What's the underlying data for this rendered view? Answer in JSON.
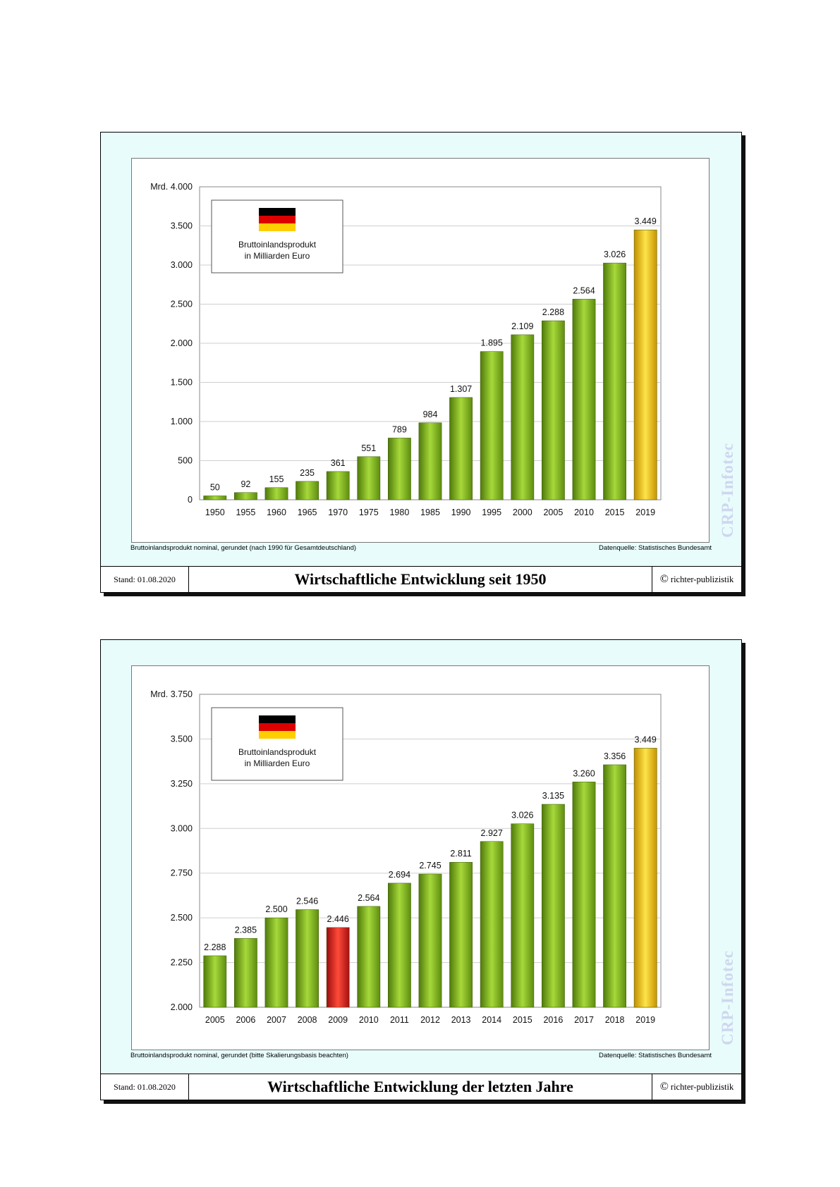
{
  "page": {
    "charts": [
      {
        "footer": {
          "date": "Stand: 01.08.2020",
          "title": "Wirtschaftliche Entwicklung seit 1950",
          "copyright_symbol": "©",
          "copyright": "richter-publizistik"
        },
        "note_left": "Bruttoinlandsprodukt nominal, gerundet (nach 1990 für Gesamtdeutschland)",
        "note_right": "Datenquelle: Statistisches Bundesamt",
        "watermark": "CRP-Infotec",
        "legend": [
          "Bruttoinlandsprodukt",
          "in Milliarden Euro"
        ]
      },
      {
        "footer": {
          "date": "Stand: 01.08.2020",
          "title": "Wirtschaftliche Entwicklung der letzten Jahre",
          "copyright_symbol": "©",
          "copyright": "richter-publizistik"
        },
        "note_left": "Bruttoinlandsprodukt nominal, gerundet (bitte Skalierungsbasis beachten)",
        "note_right": "Datenquelle: Statistisches Bundesamt",
        "watermark": "CRP-Infotec",
        "legend": [
          "Bruttoinlandsprodukt",
          "in Milliarden Euro"
        ]
      }
    ]
  },
  "colors": {
    "bar_green": "#8fc21f",
    "bar_gold": "#f2c21a",
    "bar_red": "#e02020",
    "card_background": "#e8fcfc",
    "flag": [
      "#000000",
      "#dd0000",
      "#ffce00"
    ]
  },
  "chart_data": [
    {
      "type": "bar",
      "categories": [
        "1950",
        "1955",
        "1960",
        "1965",
        "1970",
        "1975",
        "1980",
        "1985",
        "1990",
        "1995",
        "2000",
        "2005",
        "2010",
        "2015",
        "2019"
      ],
      "values": [
        50,
        92,
        155,
        235,
        361,
        551,
        789,
        984,
        1307,
        1895,
        2109,
        2288,
        2564,
        3026,
        3449
      ],
      "value_labels": [
        "50",
        "92",
        "155",
        "235",
        "361",
        "551",
        "789",
        "984",
        "1.307",
        "1.895",
        "2.109",
        "2.288",
        "2.564",
        "3.026",
        "3.449"
      ],
      "bar_colors": [
        "green",
        "green",
        "green",
        "green",
        "green",
        "green",
        "green",
        "green",
        "green",
        "green",
        "green",
        "green",
        "green",
        "green",
        "gold"
      ],
      "ylim": [
        0,
        4000
      ],
      "yticks": [
        0,
        500,
        1000,
        1500,
        2000,
        2500,
        3000,
        3500,
        4000
      ],
      "ytick_labels": [
        "0",
        "500",
        "1.000",
        "1.500",
        "2.000",
        "2.500",
        "3.000",
        "3.500",
        "4.000"
      ],
      "ytick_top_prefix": "Mrd.",
      "grid": true,
      "legend_position": "top-left"
    },
    {
      "type": "bar",
      "categories": [
        "2005",
        "2006",
        "2007",
        "2008",
        "2009",
        "2010",
        "2011",
        "2012",
        "2013",
        "2014",
        "2015",
        "2016",
        "2017",
        "2018",
        "2019"
      ],
      "values": [
        2288,
        2385,
        2500,
        2546,
        2446,
        2564,
        2694,
        2745,
        2811,
        2927,
        3026,
        3135,
        3260,
        3356,
        3449
      ],
      "value_labels": [
        "2.288",
        "2.385",
        "2.500",
        "2.546",
        "2.446",
        "2.564",
        "2.694",
        "2.745",
        "2.811",
        "2.927",
        "3.026",
        "3.135",
        "3.260",
        "3.356",
        "3.449"
      ],
      "bar_colors": [
        "green",
        "green",
        "green",
        "green",
        "red",
        "green",
        "green",
        "green",
        "green",
        "green",
        "green",
        "green",
        "green",
        "green",
        "gold"
      ],
      "ylim": [
        2000,
        3750
      ],
      "yticks": [
        2000,
        2250,
        2500,
        2750,
        3000,
        3250,
        3500,
        3750
      ],
      "ytick_labels": [
        "2.000",
        "2.250",
        "2.500",
        "2.750",
        "3.000",
        "3.250",
        "3.500",
        "3.750"
      ],
      "ytick_top_prefix": "Mrd.",
      "grid": true,
      "legend_position": "top-left"
    }
  ]
}
